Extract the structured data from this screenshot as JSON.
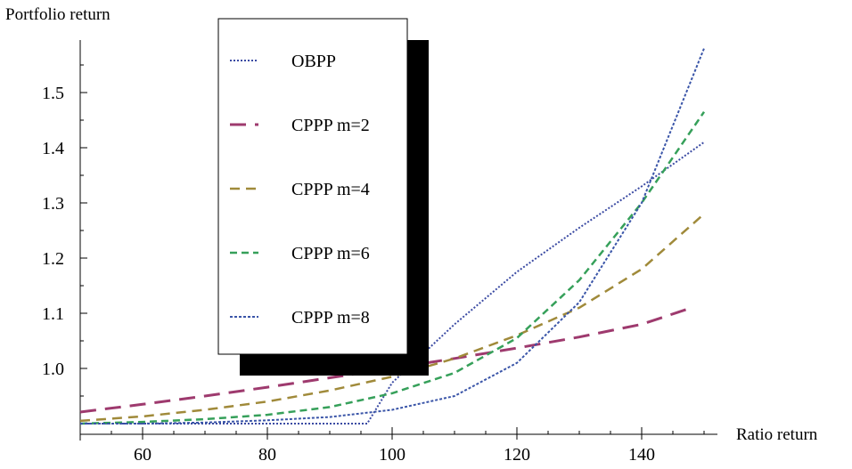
{
  "chart_data": {
    "type": "line",
    "title": "",
    "xlabel": "Ratio return",
    "ylabel": "Portfolio return",
    "xlim": [
      50,
      150
    ],
    "ylim": [
      0.9,
      1.6
    ],
    "x_ticks": [
      60,
      80,
      100,
      120,
      140
    ],
    "y_ticks": [
      1.0,
      1.1,
      1.2,
      1.3,
      1.4,
      1.5
    ],
    "y_tick_labels": [
      "1.0",
      "1.1",
      "1.2",
      "1.3",
      "1.4",
      "1.5"
    ],
    "grid": false,
    "legend_position": "top-center",
    "series": [
      {
        "name": "OBPP",
        "color": "#3b4ba3",
        "dash": "2,2",
        "width": 2,
        "x": [
          50,
          96,
          100,
          110,
          120,
          130,
          140,
          150
        ],
        "y": [
          0.9,
          0.9,
          0.974,
          1.08,
          1.175,
          1.255,
          1.33,
          1.41
        ]
      },
      {
        "name": "CPPP m=2",
        "color": "#9e3a6e",
        "dash": "18,10",
        "width": 3,
        "x": [
          50,
          60,
          70,
          80,
          90,
          100,
          110,
          120,
          130,
          140,
          148
        ],
        "y": [
          0.921,
          0.935,
          0.95,
          0.966,
          0.983,
          1.0,
          1.018,
          1.037,
          1.057,
          1.08,
          1.11
        ]
      },
      {
        "name": "CPPP m=4",
        "color": "#a08a3a",
        "dash": "11,7",
        "width": 2.5,
        "x": [
          50,
          60,
          70,
          80,
          90,
          100,
          110,
          120,
          130,
          140,
          150
        ],
        "y": [
          0.905,
          0.913,
          0.925,
          0.94,
          0.96,
          0.985,
          1.018,
          1.06,
          1.11,
          1.18,
          1.28
        ]
      },
      {
        "name": "CPPP m=6",
        "color": "#36a05a",
        "dash": "8,5",
        "width": 2.5,
        "x": [
          50,
          60,
          70,
          80,
          90,
          100,
          110,
          120,
          130,
          140,
          150
        ],
        "y": [
          0.9,
          0.903,
          0.908,
          0.916,
          0.93,
          0.955,
          0.992,
          1.055,
          1.16,
          1.3,
          1.465
        ]
      },
      {
        "name": "CPPP m=8",
        "color": "#3a55a8",
        "dash": "3,2",
        "width": 2,
        "x": [
          50,
          60,
          70,
          80,
          90,
          100,
          110,
          120,
          130,
          140,
          150
        ],
        "y": [
          0.9,
          0.9,
          0.902,
          0.906,
          0.912,
          0.925,
          0.95,
          1.01,
          1.12,
          1.3,
          1.58
        ]
      }
    ]
  }
}
